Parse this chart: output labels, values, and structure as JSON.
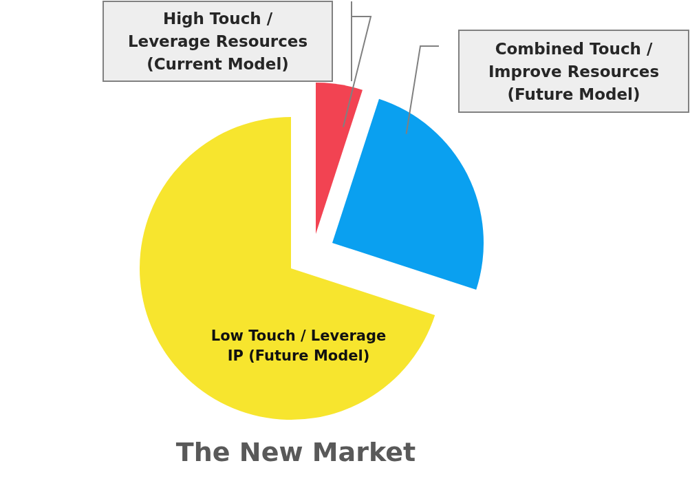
{
  "chart_data": {
    "type": "pie",
    "title": "The New Market",
    "categories": [
      "High Touch / Leverage Resources (Current Model)",
      "Combined Touch / Improve Resources (Future Model)",
      "Low Touch / Leverage IP (Future Model)"
    ],
    "values": [
      5,
      25,
      70
    ],
    "colors": [
      "#f24352",
      "#0aa0f0",
      "#f7e52e"
    ]
  }
}
